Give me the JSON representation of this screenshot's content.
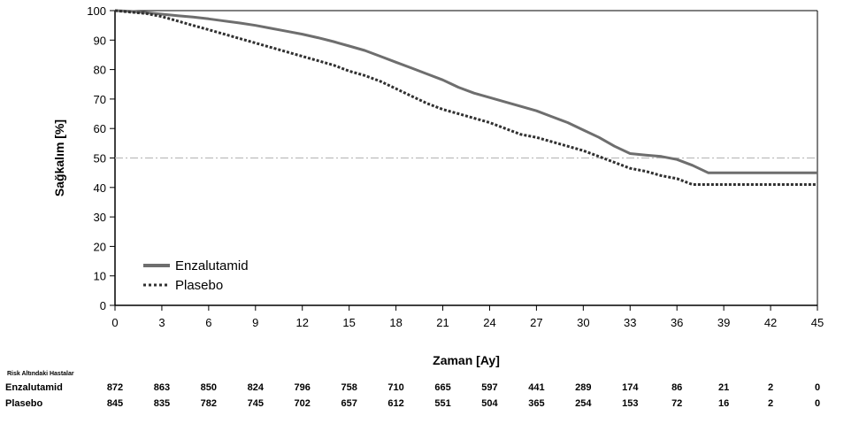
{
  "chart_data": {
    "type": "line",
    "xlabel": "Zaman  [Ay]",
    "ylabel": "Sağkalım [%]",
    "xlim": [
      0,
      45
    ],
    "ylim": [
      0,
      100
    ],
    "x_ticks": [
      0,
      3,
      6,
      9,
      12,
      15,
      18,
      21,
      24,
      27,
      30,
      33,
      36,
      39,
      42,
      45
    ],
    "y_ticks": [
      0,
      10,
      20,
      30,
      40,
      50,
      60,
      70,
      80,
      90,
      100
    ],
    "reference_line": {
      "y": 50,
      "style": "dash-dot",
      "color": "#bdbdbd"
    },
    "legend_position": "bottom-left",
    "series": [
      {
        "name": "Enzalutamid",
        "style": "solid",
        "color": "#6e6e6e",
        "x": [
          0,
          1,
          2,
          3,
          4,
          5,
          6,
          7,
          8,
          9,
          10,
          11,
          12,
          13,
          14,
          15,
          16,
          17,
          18,
          19,
          20,
          21,
          22,
          23,
          24,
          25,
          26,
          27,
          28,
          29,
          30,
          31,
          32,
          33,
          34,
          35,
          36,
          37,
          38,
          39,
          45
        ],
        "y": [
          100,
          99.8,
          99.3,
          98.8,
          98.3,
          97.8,
          97.2,
          96.5,
          95.8,
          95,
          94,
          93,
          92,
          90.8,
          89.5,
          88,
          86.5,
          84.5,
          82.5,
          80.5,
          78.5,
          76.5,
          74,
          72,
          70.5,
          69,
          67.5,
          66,
          64,
          62,
          59.5,
          57,
          54,
          51.5,
          51,
          50.5,
          49.5,
          47.5,
          45,
          45,
          45
        ]
      },
      {
        "name": "Plasebo",
        "style": "dotted",
        "color": "#303030",
        "x": [
          0,
          1,
          2,
          3,
          4,
          5,
          6,
          7,
          8,
          9,
          10,
          11,
          12,
          13,
          14,
          15,
          16,
          17,
          18,
          19,
          20,
          21,
          22,
          23,
          24,
          25,
          26,
          27,
          28,
          29,
          30,
          31,
          32,
          33,
          34,
          35,
          36,
          37,
          38,
          45
        ],
        "y": [
          100,
          99.5,
          99,
          98,
          96.5,
          95,
          93.5,
          92,
          90.5,
          89,
          87.5,
          86,
          84.5,
          83,
          81.5,
          79.5,
          78,
          76,
          73.5,
          71,
          68.5,
          66.5,
          65,
          63.5,
          62,
          60,
          58,
          57,
          55.5,
          54,
          52.5,
          50.5,
          48.5,
          46.5,
          45.5,
          44,
          43,
          41,
          41,
          41
        ]
      }
    ],
    "risk_table": {
      "title": "Risk Altındaki Hastalar",
      "rows": [
        {
          "label": "Enzalutamid",
          "values": [
            "872",
            "863",
            "850",
            "824",
            "796",
            "758",
            "710",
            "665",
            "597",
            "441",
            "289",
            "174",
            "86",
            "21",
            "2",
            "0"
          ]
        },
        {
          "label": "Plasebo",
          "values": [
            "845",
            "835",
            "782",
            "745",
            "702",
            "657",
            "612",
            "551",
            "504",
            "365",
            "254",
            "153",
            "72",
            "16",
            "2",
            "0"
          ]
        }
      ]
    }
  }
}
